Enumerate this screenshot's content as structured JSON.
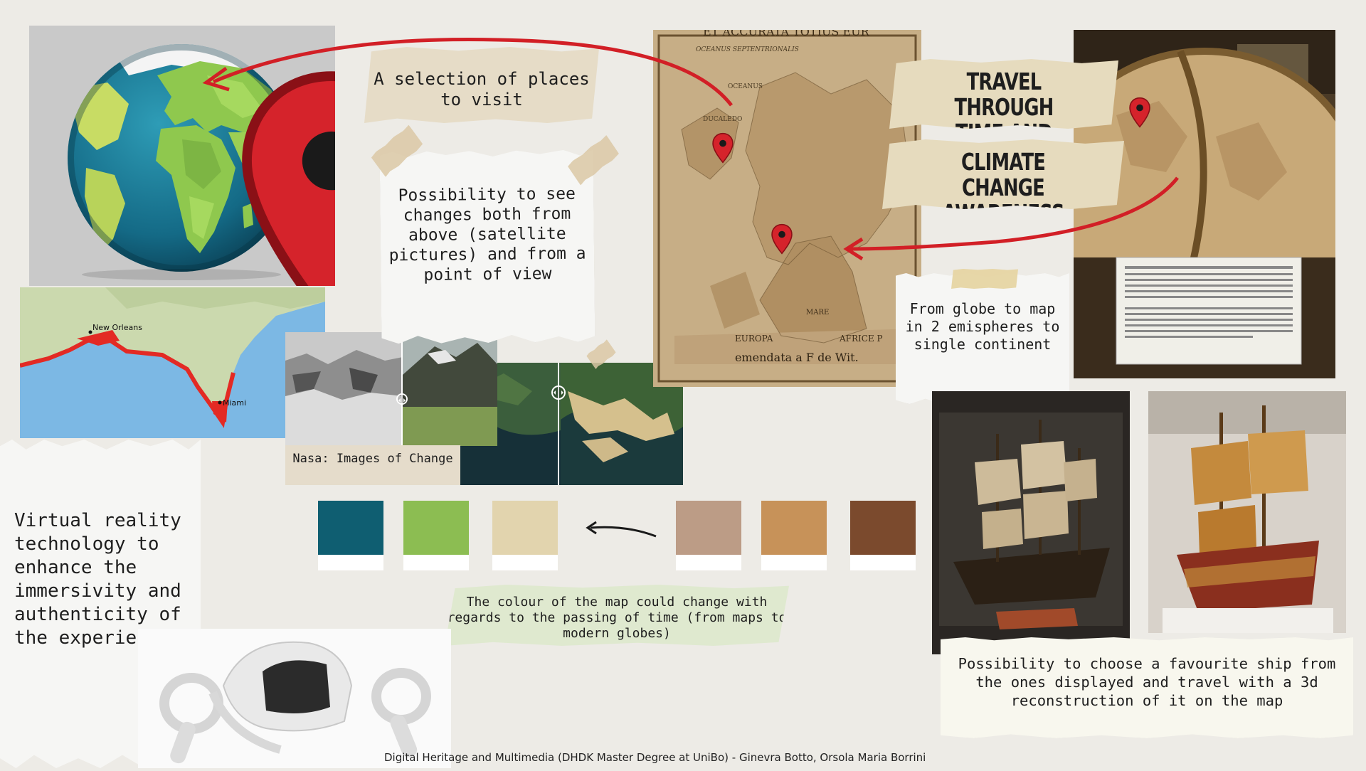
{
  "labels": {
    "selection": "A selection of places to visit",
    "possibility": "Possibility to see changes both from above (satellite pictures) and from a point of view",
    "nasa_caption": "Nasa: Images of Change",
    "travel": "TRAVEL THROUGH TIME AND SPACE",
    "climate": "CLIMATE CHANGE AWARENESS",
    "globe_to_map": "From globe to map in 2 emispheres to single continent",
    "palette_caption": "The colour of the map could change with regards to the passing of time (from maps to modern globes)",
    "ship_caption": "Possibility to choose a favourite ship from the ones displayed and travel with a 3d reconstruction of it on the map",
    "vr": "Virtual reality technology to enhance the immersivity and authenticity of the experience"
  },
  "map_labels": {
    "new_orleans": "New Orleans",
    "miami": "Miami"
  },
  "old_map_text": {
    "header": "ET ACCURATA TOTIUS EUR",
    "oceanus_sept": "OCEANUS SEPTENTRIONALIS",
    "oceanus": "OCEANUS",
    "ducaledonicus": "DUCALEDO",
    "europa": "EUROPA",
    "africa": "AFRICE P",
    "mare": "MARE",
    "footer": "emendata a F de Wit."
  },
  "palette": {
    "colors": [
      "#0f5e71",
      "#8cbd52",
      "#e2d4ae",
      "#bc9c86",
      "#c79259",
      "#7b4a2d"
    ]
  },
  "footer": "Digital Heritage and Multimedia (DHDK Master Degree at UniBo) - Ginevra Botto, Orsola Maria Borrini",
  "icons": {
    "pin": "map-pin-icon",
    "arrow": "curved-arrow-icon"
  },
  "colors": {
    "pin": "#d5232b",
    "arrow": "#d21f26",
    "ocean": "#1a6f8d",
    "land": "#8ec94f"
  }
}
